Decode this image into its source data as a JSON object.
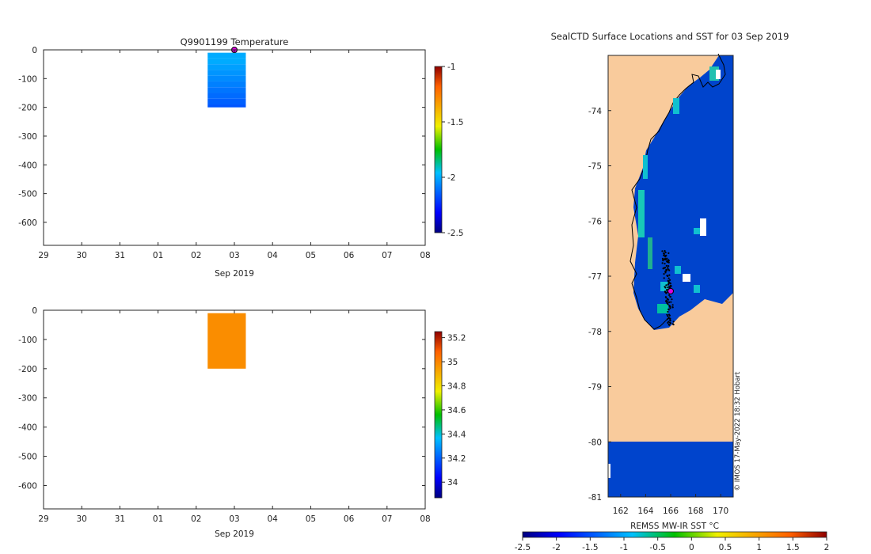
{
  "colors": {
    "land": "#f9cb9c",
    "sea": "#0044cc",
    "marker": "#e000e0",
    "track": "#000000"
  },
  "chart_data": [
    {
      "type": "heatmap",
      "id": "temperature-profile",
      "title": "Q9901199  Temperature",
      "xlabel": "Sep 2019",
      "x_ticks": [
        "29",
        "30",
        "31",
        "01",
        "02",
        "03",
        "04",
        "05",
        "06",
        "07",
        "08"
      ],
      "y_ticks": [
        "0",
        "-100",
        "-200",
        "-300",
        "-400",
        "-500",
        "-600"
      ],
      "ylim": [
        -680,
        0
      ],
      "profile": {
        "day_start": 4.3,
        "day_end": 5.3,
        "depths": [
          -10,
          -30,
          -50,
          -70,
          -90,
          -110,
          -130,
          -150,
          -170,
          -190,
          -200
        ],
        "values": [
          -2.0,
          -2.0,
          -2.02,
          -2.04,
          -2.06,
          -2.08,
          -2.1,
          -2.12,
          -2.14,
          -2.16
        ]
      },
      "surface_marker_day": 5.0,
      "colorbar": {
        "min": -2.5,
        "max": -1.0,
        "ticks": [
          "-1",
          "-1.5",
          "-2",
          "-2.5"
        ],
        "tick_values": [
          -1.0,
          -1.5,
          -2.0,
          -2.5
        ]
      }
    },
    {
      "type": "heatmap",
      "id": "salinity-profile",
      "title": "",
      "xlabel": "Sep 2019",
      "x_ticks": [
        "29",
        "30",
        "31",
        "01",
        "02",
        "03",
        "04",
        "05",
        "06",
        "07",
        "08"
      ],
      "y_ticks": [
        "0",
        "-100",
        "-200",
        "-300",
        "-400",
        "-500",
        "-600"
      ],
      "ylim": [
        -680,
        0
      ],
      "profile": {
        "day_start": 4.3,
        "day_end": 5.3,
        "depth_top": -10,
        "depth_bottom": -200,
        "value": 34.98
      },
      "colorbar": {
        "min": 33.87,
        "max": 35.25,
        "ticks": [
          "35.2",
          "35",
          "34.8",
          "34.6",
          "34.4",
          "34.2",
          "34"
        ],
        "tick_values": [
          35.2,
          35.0,
          34.8,
          34.6,
          34.4,
          34.2,
          34.0
        ]
      }
    },
    {
      "type": "map",
      "id": "sst-map",
      "title": "SealCTD Surface Locations and SST for 03 Sep 2019",
      "lon_range": [
        161.0,
        171.0
      ],
      "lat_range": [
        -81.0,
        -73.0
      ],
      "x_ticks": [
        "162",
        "164",
        "166",
        "168",
        "170"
      ],
      "x_tick_values": [
        162,
        164,
        166,
        168,
        170
      ],
      "y_ticks": [
        "-74",
        "-75",
        "-76",
        "-77",
        "-78",
        "-79",
        "-80",
        "-81"
      ],
      "y_tick_values": [
        -74,
        -75,
        -76,
        -77,
        -78,
        -79,
        -80,
        -81
      ],
      "current_position": {
        "lon": 166.0,
        "lat": -77.27
      },
      "track_center": {
        "lon": 165.9,
        "lat": -77.4
      },
      "watermark": "© IMOS 17-May-2022 18:32 Hobart",
      "colorbar": {
        "label": "REMSS MW-IR SST °C",
        "min": -2.5,
        "max": 2.0,
        "ticks": [
          "-2.5",
          "-2",
          "-1.5",
          "-1",
          "-0.5",
          "0",
          "0.5",
          "1",
          "1.5",
          "2"
        ],
        "tick_values": [
          -2.5,
          -2.0,
          -1.5,
          -1.0,
          -0.5,
          0.0,
          0.5,
          1.0,
          1.5,
          2.0
        ]
      }
    }
  ]
}
